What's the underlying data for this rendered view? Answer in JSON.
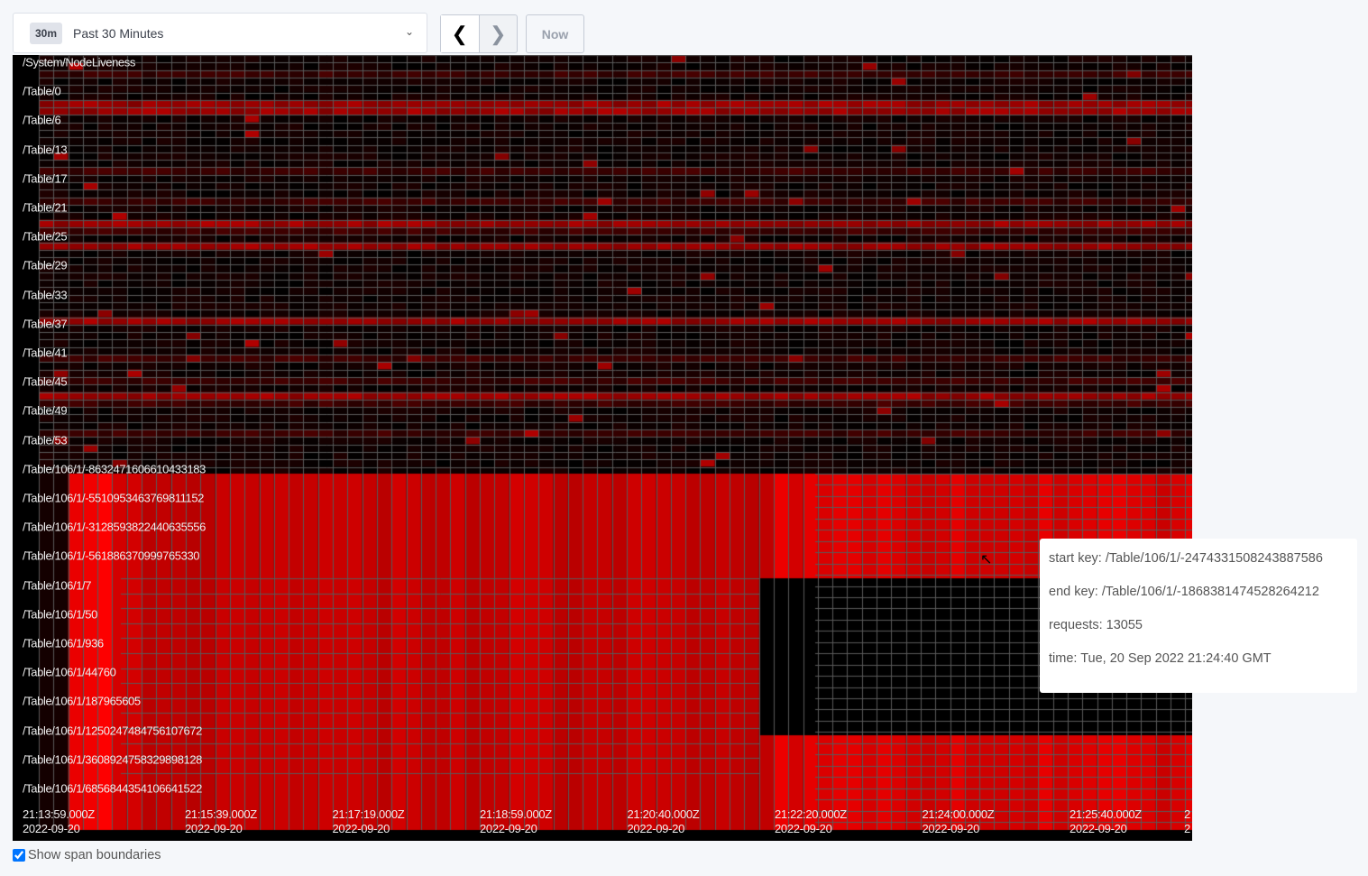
{
  "time_range": {
    "badge": "30m",
    "label": "Past 30 Minutes"
  },
  "nav": {
    "prev_icon": "chevron-left",
    "next_icon": "chevron-right",
    "now_label": "Now"
  },
  "heatmap": {
    "y_labels": [
      "/System/NodeLiveness",
      "/Table/0",
      "/Table/6",
      "/Table/13",
      "/Table/17",
      "/Table/21",
      "/Table/25",
      "/Table/29",
      "/Table/33",
      "/Table/37",
      "/Table/41",
      "/Table/45",
      "/Table/49",
      "/Table/53",
      "/Table/106/1/-8632471606610433183",
      "/Table/106/1/-5510953463769811152",
      "/Table/106/1/-3128593822440635556",
      "/Table/106/1/-561886370999765330",
      "/Table/106/1/7",
      "/Table/106/1/50",
      "/Table/106/1/936",
      "/Table/106/1/44760",
      "/Table/106/1/187965605",
      "/Table/106/1/1250247484756107672",
      "/Table/106/1/3608924758329898128",
      "/Table/106/1/6856844354106641522"
    ],
    "x_labels": [
      {
        "time": "21:13:59.000Z",
        "date": "2022-09-20"
      },
      {
        "time": "21:15:39.000Z",
        "date": "2022-09-20"
      },
      {
        "time": "21:17:19.000Z",
        "date": "2022-09-20"
      },
      {
        "time": "21:18:59.000Z",
        "date": "2022-09-20"
      },
      {
        "time": "21:20:40.000Z",
        "date": "2022-09-20"
      },
      {
        "time": "21:22:20.000Z",
        "date": "2022-09-20"
      },
      {
        "time": "21:24:00.000Z",
        "date": "2022-09-20"
      },
      {
        "time": "21:25:40.000Z",
        "date": "2022-09-20"
      },
      {
        "time": "2",
        "date": "2"
      }
    ],
    "colors": {
      "low": "#000000",
      "high": "#ff0000",
      "grid": "#5a5a5a"
    }
  },
  "tooltip": {
    "start_key": "start key: /Table/106/1/-2474331508243887586",
    "end_key": "end key: /Table/106/1/-1868381474528264212",
    "requests": "requests: 13055",
    "time": "time: Tue, 20 Sep 2022 21:24:40 GMT"
  },
  "show_span_boundaries": {
    "label": "Show span boundaries",
    "checked": true
  }
}
